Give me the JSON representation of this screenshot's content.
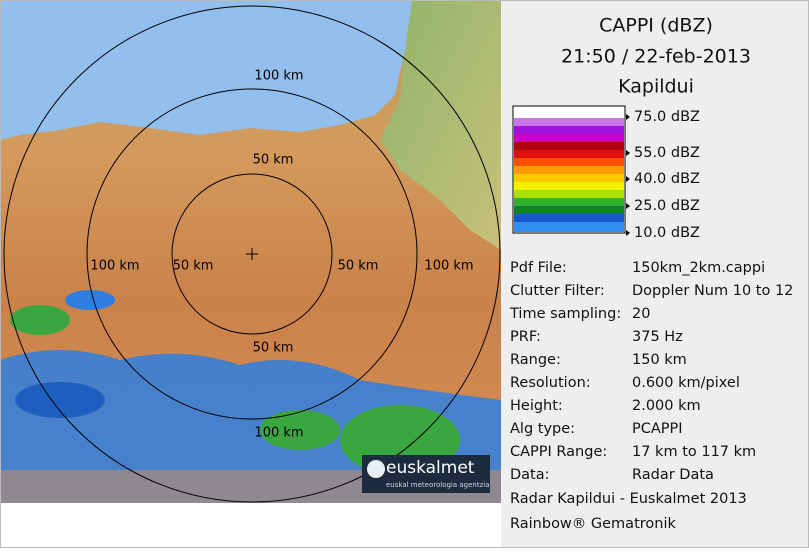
{
  "map": {
    "ring_labels": [
      "100 km",
      "50 km",
      "100 km",
      "50 km",
      "50 km",
      "100 km",
      "50 km",
      "100 km"
    ],
    "logo": {
      "name": "euskalmet",
      "tagline": "euskal meteorologia agentzia"
    }
  },
  "panel": {
    "title": "CAPPI (dBZ)",
    "datetime": "21:50 / 22-feb-2013",
    "site": "Kapildui",
    "scale_labels": [
      "75.0 dBZ",
      "55.0 dBZ",
      "40.0 dBZ",
      "25.0 dBZ",
      "10.0 dBZ"
    ],
    "info": [
      [
        "Pdf File:",
        "150km_2km.cappi"
      ],
      [
        "Clutter Filter:",
        "Doppler Num 10 to 12"
      ],
      [
        "Time sampling:",
        "20"
      ],
      [
        "PRF:",
        "375 Hz"
      ],
      [
        "Range:",
        "150 km"
      ],
      [
        "Resolution:",
        "0.600 km/pixel"
      ],
      [
        "Height:",
        "2.000 km"
      ],
      [
        "Alg type:",
        "PCAPPI"
      ],
      [
        "CAPPI Range:",
        "17 km to 117 km"
      ],
      [
        "Data:",
        "Radar Data"
      ]
    ],
    "credits": [
      "Radar Kapildui - Euskalmet 2013",
      "Rainbow® Gematronik"
    ]
  }
}
